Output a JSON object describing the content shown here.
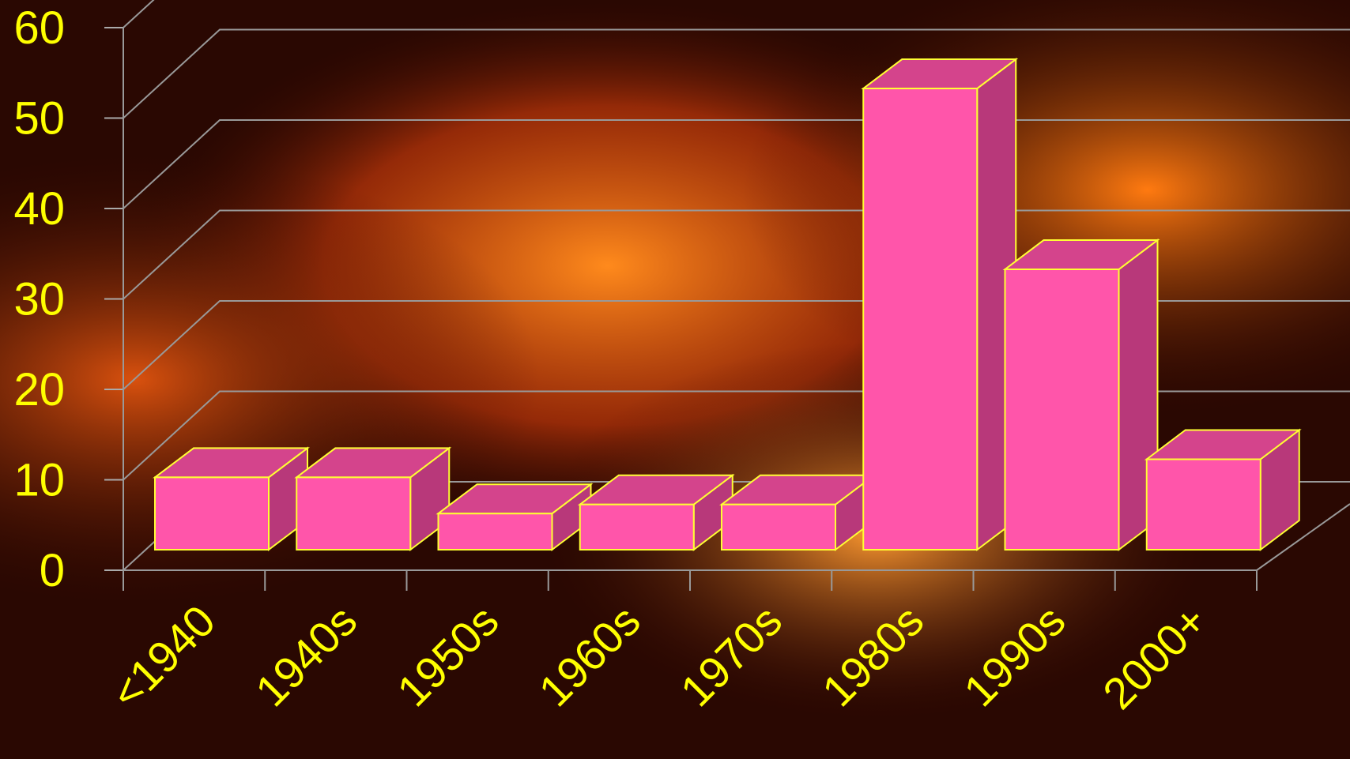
{
  "chart_data": {
    "type": "bar",
    "categories": [
      "<1940",
      "1940s",
      "1950s",
      "1960s",
      "1970s",
      "1980s",
      "1990s",
      "2000+"
    ],
    "values": [
      8,
      8,
      4,
      5,
      5,
      51,
      31,
      10
    ],
    "color": "#ff55aa",
    "ylim": [
      0,
      60
    ],
    "yticks": [
      0,
      10,
      20,
      30,
      40,
      50,
      60
    ],
    "grid": true
  }
}
